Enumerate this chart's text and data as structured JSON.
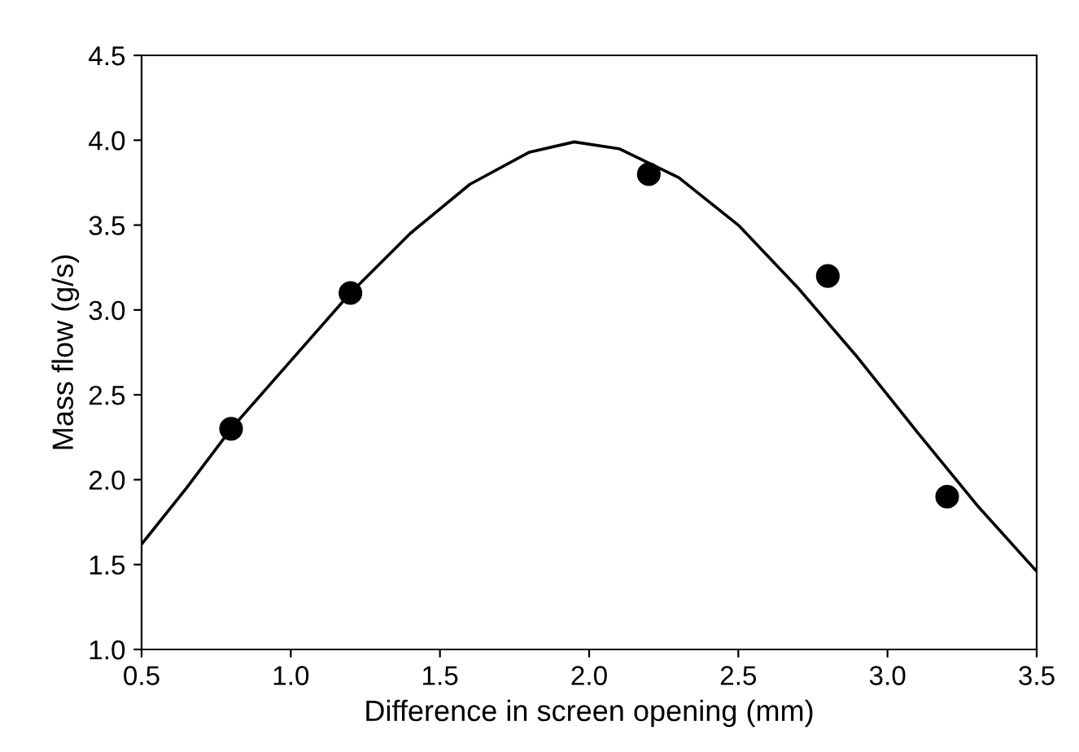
{
  "chart_data": {
    "type": "scatter",
    "xlabel": "Difference in screen opening (mm)",
    "ylabel": "Mass flow (g/s)",
    "xlim": [
      0.5,
      3.5
    ],
    "ylim": [
      1.0,
      4.5
    ],
    "xticks": [
      {
        "value": 0.5,
        "label": "0.5"
      },
      {
        "value": 1.0,
        "label": "1.0"
      },
      {
        "value": 1.5,
        "label": "1.5"
      },
      {
        "value": 2.0,
        "label": "2.0"
      },
      {
        "value": 2.5,
        "label": "2.5"
      },
      {
        "value": 3.0,
        "label": "3.0"
      },
      {
        "value": 3.5,
        "label": "3.5"
      }
    ],
    "yticks": [
      {
        "value": 1.0,
        "label": "1.0"
      },
      {
        "value": 1.5,
        "label": "1.5"
      },
      {
        "value": 2.0,
        "label": "2.0"
      },
      {
        "value": 2.5,
        "label": "2.5"
      },
      {
        "value": 3.0,
        "label": "3.0"
      },
      {
        "value": 3.5,
        "label": "3.5"
      },
      {
        "value": 4.0,
        "label": "4.0"
      },
      {
        "value": 4.5,
        "label": "4.5"
      }
    ],
    "series": [
      {
        "type": "line",
        "color": "#000000",
        "marker": "none",
        "line_style": "solid",
        "x": [
          0.5,
          0.65,
          0.8,
          1.0,
          1.2,
          1.4,
          1.6,
          1.8,
          1.95,
          2.1,
          2.3,
          2.5,
          2.7,
          2.9,
          3.1,
          3.3,
          3.5
        ],
        "values": [
          1.62,
          1.95,
          2.3,
          2.7,
          3.1,
          3.45,
          3.74,
          3.93,
          3.99,
          3.95,
          3.78,
          3.5,
          3.13,
          2.72,
          2.28,
          1.85,
          1.46
        ]
      },
      {
        "color": "#000000",
        "marker": "circle",
        "x": [
          0.8,
          1.2,
          2.2,
          2.8,
          3.2
        ],
        "values": [
          2.3,
          3.1,
          3.8,
          3.2,
          1.9
        ]
      }
    ]
  }
}
